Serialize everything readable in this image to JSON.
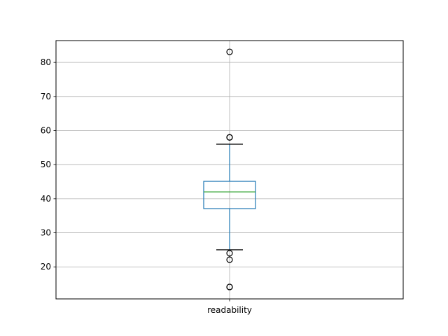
{
  "chart_data": {
    "type": "box",
    "title": "",
    "xlabel": "",
    "ylabel": "",
    "categories": [
      "readability"
    ],
    "ylim": [
      10.6,
      86.4
    ],
    "yticks": [
      20,
      30,
      40,
      50,
      60,
      70,
      80
    ],
    "grid": true,
    "boxes": [
      {
        "name": "readability",
        "q1": 37.1,
        "median": 42.0,
        "q3": 45.1,
        "whisker_low": 25.0,
        "whisker_high": 56.0,
        "fliers": [
          83.1,
          58.0,
          58.0,
          24.0,
          22.1,
          14.1,
          14.1
        ]
      }
    ],
    "colors": {
      "box": "#1f77b4",
      "median": "#2ca02c",
      "caps": "#000000",
      "grid": "#b0b0b0"
    }
  }
}
